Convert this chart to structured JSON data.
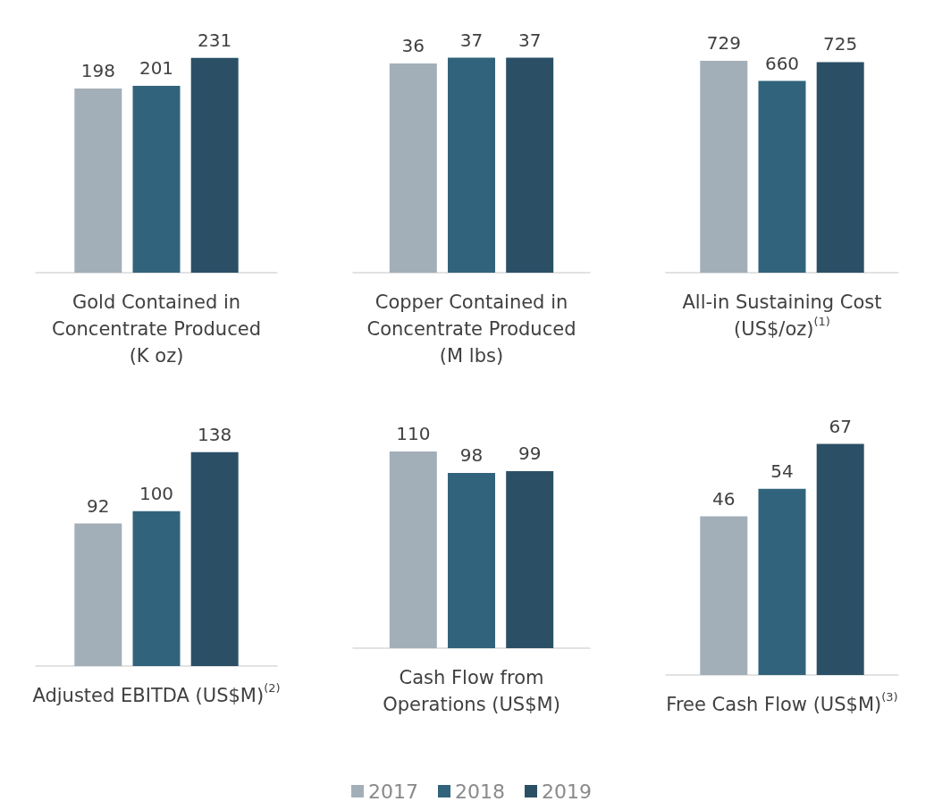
{
  "chart_data": [
    {
      "type": "bar",
      "xlabel": "Gold Contained in Concentrate Produced (K oz)",
      "categories": [
        null
      ],
      "data_labels": true,
      "legend": false,
      "series": [
        {
          "color": "#a3afb8",
          "values": [
            198
          ]
        },
        {
          "color": "#31647c",
          "values": [
            201
          ]
        },
        {
          "color": "#2b5066",
          "values": [
            231
          ]
        }
      ]
    },
    {
      "type": "bar",
      "xlabel": "Copper Contained in Concentrate Produced (M lbs)",
      "categories": [
        null
      ],
      "data_labels": true,
      "legend": false,
      "series": [
        {
          "color": "#a3afb8",
          "values": [
            36
          ]
        },
        {
          "color": "#31647c",
          "values": [
            37
          ]
        },
        {
          "color": "#2b5066",
          "values": [
            37
          ]
        }
      ]
    },
    {
      "type": "bar",
      "xlabel": "All-in Sustaining Cost (US$/oz)$^{(1)}$",
      "categories": [
        null
      ],
      "data_labels": true,
      "legend": false,
      "series": [
        {
          "color": "#a3afb8",
          "values": [
            729
          ]
        },
        {
          "color": "#31647c",
          "values": [
            660
          ]
        },
        {
          "color": "#2b5066",
          "values": [
            725
          ]
        }
      ]
    },
    {
      "type": "bar",
      "xlabel": "Adjusted EBITDA (US$M)$^{(2)}$",
      "categories": [
        null
      ],
      "data_labels": true,
      "legend": false,
      "series": [
        {
          "color": "#a3afb8",
          "values": [
            92
          ]
        },
        {
          "color": "#31647c",
          "values": [
            100
          ]
        },
        {
          "color": "#2b5066",
          "values": [
            138
          ]
        }
      ]
    },
    {
      "type": "bar",
      "xlabel": "Cash Flow from Operations (US$M)",
      "categories": [
        null
      ],
      "data_labels": true,
      "legend": "bottom",
      "series": [
        {
          "name": "2017",
          "color": "#a3afb8",
          "values": [
            110
          ]
        },
        {
          "name": "2018",
          "color": "#31647c",
          "values": [
            98
          ]
        },
        {
          "name": "2019",
          "color": "#2b5066",
          "values": [
            99
          ]
        }
      ]
    },
    {
      "type": "bar",
      "xlabel": "Free Cash Flow (US$M)$^{(3)}$",
      "categories": [
        null
      ],
      "data_labels": true,
      "legend": false,
      "series": [
        {
          "color": "#a3afb8",
          "values": [
            46
          ]
        },
        {
          "color": "#31647c",
          "values": [
            54
          ]
        },
        {
          "color": "#2b5066",
          "values": [
            67
          ]
        }
      ]
    }
  ]
}
